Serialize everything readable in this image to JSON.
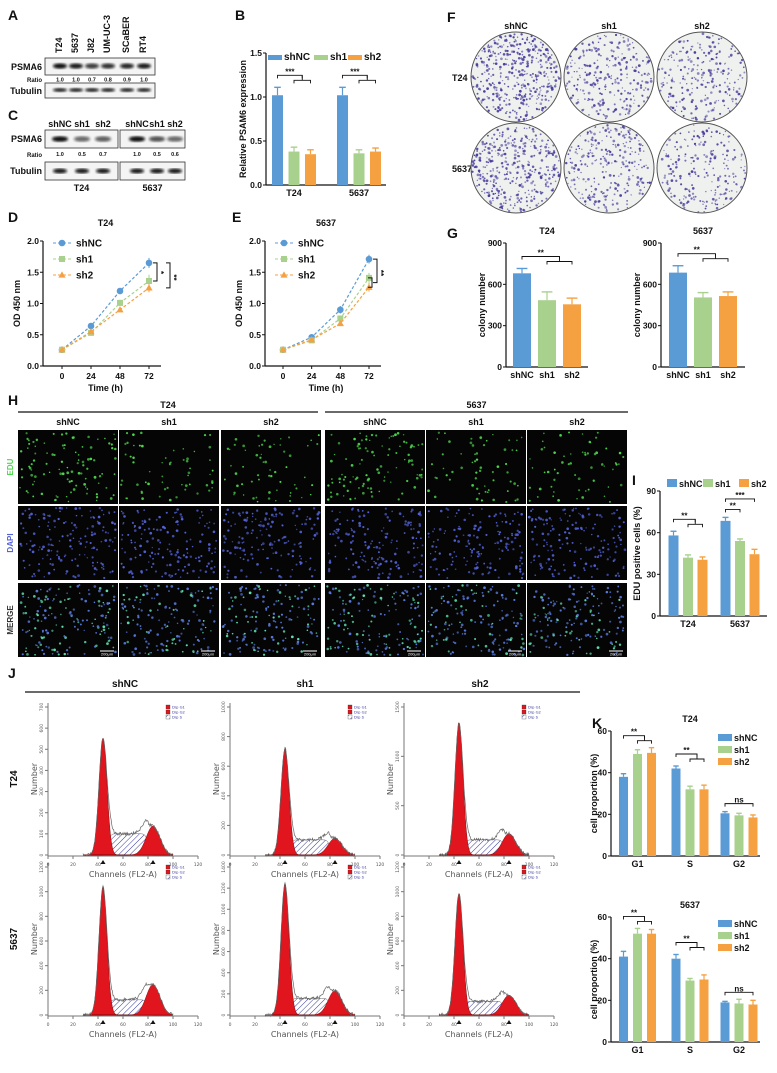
{
  "panel_labels": [
    "A",
    "B",
    "C",
    "D",
    "E",
    "F",
    "G",
    "H",
    "I",
    "J",
    "K"
  ],
  "colors": {
    "shNC": "#5b9bd5",
    "sh1": "#a9d18e",
    "sh2": "#f5a142",
    "edu": "#4ed84e",
    "dapi": "#5462d8",
    "dip_g1": "#e0151d",
    "dip_s": "#3a3aa0"
  },
  "panel_A": {
    "lanes": [
      "T24",
      "5637",
      "J82",
      "UM-UC-3",
      "SCaBER",
      "RT4"
    ],
    "rows": {
      "target": "PSMA6",
      "ratio": "Ratio",
      "loading": "Tubulin"
    },
    "ratios": [
      "1.0",
      "1.0",
      "0.7",
      "0.8",
      "0.9",
      "1.0"
    ]
  },
  "panel_C": {
    "rows": {
      "target": "PSMA6",
      "ratio": "Ratio",
      "loading": "Tubulin"
    },
    "groups": [
      {
        "name": "T24",
        "lanes": [
          "shNC",
          "sh1",
          "sh2"
        ],
        "ratios": [
          "1.0",
          "0.5",
          "0.7"
        ]
      },
      {
        "name": "5637",
        "lanes": [
          "shNC",
          "sh1",
          "sh2"
        ],
        "ratios": [
          "1.0",
          "0.5",
          "0.6"
        ]
      }
    ]
  },
  "panel_F": {
    "columns": [
      "shNC",
      "sh1",
      "sh2"
    ],
    "rows": [
      "T24",
      "5637"
    ]
  },
  "panel_H": {
    "groups": [
      "T24",
      "5637"
    ],
    "columns": [
      "shNC",
      "sh1",
      "sh2"
    ],
    "rows": [
      "EDU",
      "DAPI",
      "MERGE"
    ],
    "scale_bar": "200μm"
  },
  "panel_J": {
    "columns": [
      "shNC",
      "sh1",
      "sh2"
    ],
    "rows": [
      "T24",
      "5637"
    ],
    "xlabel": "Channels (FL2-A)",
    "ylabel": "Number",
    "legend": [
      "Dip G1",
      "Dip G2",
      "Dip S"
    ],
    "x_ticks": [
      "0",
      "20",
      "40",
      "60",
      "80",
      "100",
      "120"
    ],
    "y_ticks": [
      [
        "0",
        "100",
        "200",
        "300",
        "400",
        "500",
        "600",
        "700"
      ],
      [
        "0",
        "200",
        "400",
        "600",
        "800",
        "1000"
      ],
      [
        "0",
        "500",
        "1000",
        "1500"
      ],
      [
        "0",
        "200",
        "400",
        "600",
        "800",
        "1000",
        "1200"
      ],
      [
        "0",
        "200",
        "400",
        "600",
        "800",
        "1000",
        "1200",
        "1400"
      ],
      [
        "0",
        "200",
        "400",
        "600",
        "800",
        "1000",
        "1200"
      ]
    ]
  },
  "chart_data": [
    {
      "panel": "B",
      "type": "bar",
      "categories": [
        "T24",
        "5637"
      ],
      "series": [
        {
          "name": "shNC",
          "values": [
            1.02,
            1.02
          ],
          "errors": [
            0.09,
            0.09
          ]
        },
        {
          "name": "sh1",
          "values": [
            0.38,
            0.36
          ],
          "errors": [
            0.05,
            0.04
          ]
        },
        {
          "name": "sh2",
          "values": [
            0.35,
            0.38
          ],
          "errors": [
            0.05,
            0.04
          ]
        }
      ],
      "ylabel": "Relative PSAM6 expression",
      "ylim": [
        0,
        1.5
      ],
      "yticks": [
        0,
        0.5,
        1,
        1.5
      ],
      "ytick_labels": [
        "0.0",
        "0.5",
        "1.0",
        "1.5"
      ],
      "legend": "top",
      "annotations": [
        {
          "category": 0,
          "label": "***",
          "compare": [
            "shNC",
            [
              "sh1",
              "sh2"
            ]
          ]
        },
        {
          "category": 1,
          "label": "***",
          "compare": [
            "shNC",
            [
              "sh1",
              "sh2"
            ]
          ]
        }
      ]
    },
    {
      "panel": "D",
      "type": "line",
      "title": "T24",
      "x": [
        0,
        24,
        48,
        72
      ],
      "xtick_labels": [
        "0",
        "24",
        "48",
        "72"
      ],
      "xlabel": "Time (h)",
      "ylabel": "OD 450 nm",
      "ylim": [
        0,
        2
      ],
      "yticks": [
        0,
        0.5,
        1,
        1.5,
        2
      ],
      "ytick_labels": [
        "0.0",
        "0.5",
        "1.0",
        "1.5",
        "2.0"
      ],
      "legend": "top-left",
      "series": [
        {
          "name": "shNC",
          "values": [
            0.26,
            0.64,
            1.2,
            1.65
          ],
          "errors": [
            0.02,
            0.03,
            0.05,
            0.08
          ]
        },
        {
          "name": "sh1",
          "values": [
            0.26,
            0.53,
            1.01,
            1.36
          ],
          "errors": [
            0.02,
            0.03,
            0.05,
            0.1
          ]
        },
        {
          "name": "sh2",
          "values": [
            0.26,
            0.55,
            0.9,
            1.25
          ],
          "errors": [
            0.02,
            0.03,
            0.04,
            0.07
          ]
        }
      ],
      "annotations": [
        {
          "label": "*",
          "compare": [
            "shNC",
            "sh1"
          ]
        },
        {
          "label": "**",
          "compare": [
            "shNC",
            "sh2"
          ]
        }
      ]
    },
    {
      "panel": "E",
      "type": "line",
      "title": "5637",
      "x": [
        0,
        24,
        48,
        72
      ],
      "xtick_labels": [
        "0",
        "24",
        "48",
        "72"
      ],
      "xlabel": "Time (h)",
      "ylabel": "OD 450 nm",
      "ylim": [
        0,
        2
      ],
      "yticks": [
        0,
        0.5,
        1,
        1.5,
        2
      ],
      "ytick_labels": [
        "0.0",
        "0.5",
        "1.0",
        "1.5",
        "2.0"
      ],
      "legend": "top-left",
      "series": [
        {
          "name": "shNC",
          "values": [
            0.26,
            0.46,
            0.9,
            1.71
          ],
          "errors": [
            0.02,
            0.03,
            0.06,
            0.07
          ]
        },
        {
          "name": "sh1",
          "values": [
            0.26,
            0.41,
            0.76,
            1.41
          ],
          "errors": [
            0.02,
            0.03,
            0.05,
            0.08
          ]
        },
        {
          "name": "sh2",
          "values": [
            0.26,
            0.42,
            0.68,
            1.26
          ],
          "errors": [
            0.02,
            0.03,
            0.04,
            0.07
          ]
        }
      ],
      "annotations": [
        {
          "label": "**",
          "compare": [
            "shNC",
            [
              "sh1",
              "sh2"
            ]
          ]
        }
      ]
    },
    {
      "panel": "G",
      "type": "bar",
      "title": "T24",
      "categories": [
        "shNC",
        "sh1",
        "sh2"
      ],
      "values": [
        680,
        485,
        455
      ],
      "errors": [
        35,
        60,
        45
      ],
      "ylabel": "colony number",
      "ylim": [
        0,
        900
      ],
      "yticks": [
        0,
        300,
        600,
        900
      ],
      "ytick_labels": [
        "0",
        "300",
        "600",
        "900"
      ],
      "annotations": [
        {
          "label": "**",
          "compare": [
            "shNC",
            [
              "sh1",
              "sh2"
            ]
          ]
        }
      ]
    },
    {
      "panel": "G",
      "type": "bar",
      "title": "5637",
      "categories": [
        "shNC",
        "sh1",
        "sh2"
      ],
      "values": [
        685,
        505,
        515
      ],
      "errors": [
        50,
        35,
        30
      ],
      "ylabel": "colony number",
      "ylim": [
        0,
        900
      ],
      "yticks": [
        0,
        300,
        600,
        900
      ],
      "ytick_labels": [
        "0",
        "300",
        "600",
        "900"
      ],
      "annotations": [
        {
          "label": "**",
          "compare": [
            "shNC",
            [
              "sh1",
              "sh2"
            ]
          ]
        }
      ]
    },
    {
      "panel": "I",
      "type": "bar",
      "categories": [
        "T24",
        "5637"
      ],
      "series": [
        {
          "name": "shNC",
          "values": [
            58,
            68.5
          ],
          "errors": [
            3,
            2.5
          ]
        },
        {
          "name": "sh1",
          "values": [
            42,
            54
          ],
          "errors": [
            2,
            1.5
          ]
        },
        {
          "name": "sh2",
          "values": [
            40.5,
            44.5
          ],
          "errors": [
            2,
            3.5
          ]
        }
      ],
      "ylabel": "EDU positive cells (%)",
      "ylim": [
        0,
        90
      ],
      "yticks": [
        0,
        30,
        60,
        90
      ],
      "ytick_labels": [
        "0",
        "30",
        "60",
        "90"
      ],
      "legend": "top",
      "annotations": [
        {
          "category": 0,
          "label": "**",
          "compare": [
            "shNC",
            [
              "sh1",
              "sh2"
            ]
          ]
        },
        {
          "category": 1,
          "label": "**",
          "compare": [
            "shNC",
            "sh1"
          ]
        },
        {
          "category": 1,
          "label": "***",
          "compare": [
            "shNC",
            "sh2"
          ]
        }
      ]
    },
    {
      "panel": "K",
      "type": "bar",
      "title": "T24",
      "categories": [
        "G1",
        "S",
        "G2"
      ],
      "series": [
        {
          "name": "shNC",
          "values": [
            38,
            42,
            20.5
          ],
          "errors": [
            1.5,
            1.2,
            0.8
          ]
        },
        {
          "name": "sh1",
          "values": [
            49,
            32,
            19.5
          ],
          "errors": [
            2,
            1.5,
            1
          ]
        },
        {
          "name": "sh2",
          "values": [
            49.5,
            32,
            18.5
          ],
          "errors": [
            2.5,
            2,
            1.2
          ]
        }
      ],
      "ylabel": "cell proportion (%)",
      "ylim": [
        0,
        60
      ],
      "yticks": [
        0,
        20,
        40,
        60
      ],
      "ytick_labels": [
        "0",
        "20",
        "40",
        "60"
      ],
      "legend": "top-right",
      "annotations": [
        {
          "category": 0,
          "label": "**",
          "compare": [
            "shNC",
            [
              "sh1",
              "sh2"
            ]
          ]
        },
        {
          "category": 1,
          "label": "**",
          "compare": [
            "shNC",
            [
              "sh1",
              "sh2"
            ]
          ]
        },
        {
          "category": 2,
          "label": "ns",
          "compare": [
            "shNC",
            "sh2"
          ]
        }
      ]
    },
    {
      "panel": "K",
      "type": "bar",
      "title": "5637",
      "categories": [
        "G1",
        "S",
        "G2"
      ],
      "series": [
        {
          "name": "shNC",
          "values": [
            41,
            40,
            19
          ],
          "errors": [
            2.5,
            2,
            0.5
          ]
        },
        {
          "name": "sh1",
          "values": [
            52,
            29.5,
            18.5
          ],
          "errors": [
            2.5,
            1,
            2
          ]
        },
        {
          "name": "sh2",
          "values": [
            52,
            30,
            18
          ],
          "errors": [
            2,
            2.2,
            2
          ]
        }
      ],
      "ylabel": "cell proportion (%)",
      "ylim": [
        0,
        60
      ],
      "yticks": [
        0,
        20,
        40,
        60
      ],
      "ytick_labels": [
        "0",
        "20",
        "40",
        "60"
      ],
      "legend": "top-right",
      "annotations": [
        {
          "category": 0,
          "label": "**",
          "compare": [
            "shNC",
            [
              "sh1",
              "sh2"
            ]
          ]
        },
        {
          "category": 1,
          "label": "**",
          "compare": [
            "shNC",
            [
              "sh1",
              "sh2"
            ]
          ]
        },
        {
          "category": 2,
          "label": "ns",
          "compare": [
            "shNC",
            "sh2"
          ]
        }
      ]
    }
  ]
}
